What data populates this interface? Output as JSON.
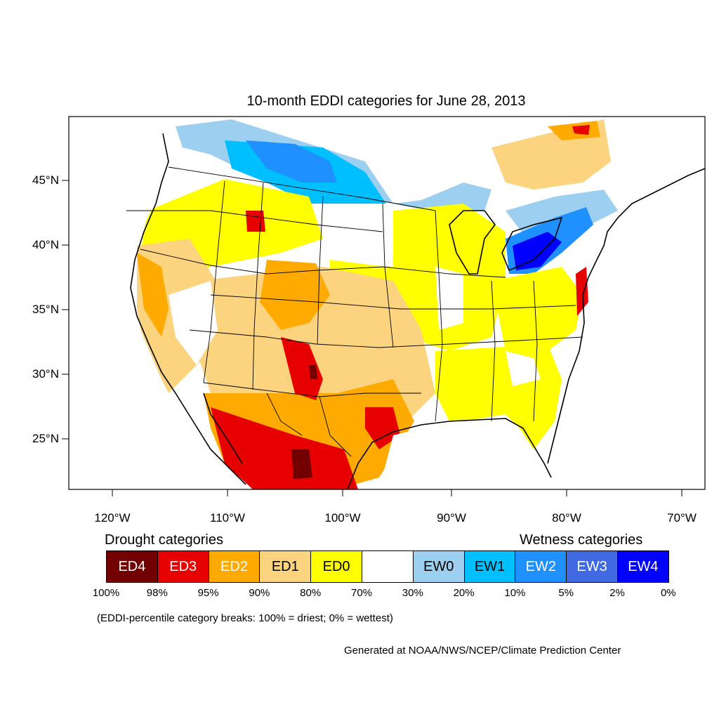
{
  "title": "10-month EDDI categories for June 28, 2013",
  "lat_labels": [
    "45°N",
    "40°N",
    "35°N",
    "30°N",
    "25°N"
  ],
  "lon_labels": [
    "120°W",
    "110°W",
    "100°W",
    "90°W",
    "80°W",
    "70°W"
  ],
  "legend": {
    "drought_heading": "Drought categories",
    "wetness_heading": "Wetness categories",
    "categories": [
      {
        "label": "ED4",
        "color": "#730000",
        "text_color": "#ffffff"
      },
      {
        "label": "ED3",
        "color": "#e60000",
        "text_color": "#ffffff"
      },
      {
        "label": "ED2",
        "color": "#ffaa00",
        "text_color": "#ffffff"
      },
      {
        "label": "ED1",
        "color": "#fcd37f",
        "text_color": "#000000"
      },
      {
        "label": "ED0",
        "color": "#ffff00",
        "text_color": "#000000"
      },
      {
        "label": "",
        "color": "#ffffff",
        "text_color": "#000000"
      },
      {
        "label": "EW0",
        "color": "#9dcff0",
        "text_color": "#000000"
      },
      {
        "label": "EW1",
        "color": "#00bfff",
        "text_color": "#000000"
      },
      {
        "label": "EW2",
        "color": "#1e90ff",
        "text_color": "#ffffff"
      },
      {
        "label": "EW3",
        "color": "#4169e1",
        "text_color": "#ffffff"
      },
      {
        "label": "EW4",
        "color": "#0000ff",
        "text_color": "#ffffff"
      }
    ],
    "percent_breaks": [
      "100%",
      "98%",
      "95%",
      "90%",
      "80%",
      "70%",
      "30%",
      "20%",
      "10%",
      "5%",
      "2%",
      "0%"
    ]
  },
  "note": "(EDDI-percentile category breaks: 100% = driest; 0% = wettest)",
  "credit": "Generated at NOAA/NWS/NCEP/Climate Prediction Center"
}
